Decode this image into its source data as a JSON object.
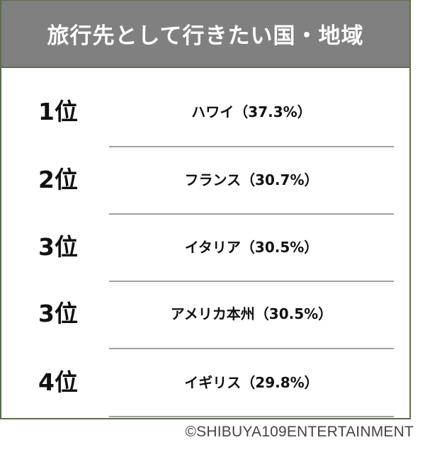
{
  "title": "旅行先として行きたい国・地域",
  "rankings": [
    {
      "rank": "1位",
      "item": "ハワイ（37.3%）"
    },
    {
      "rank": "2位",
      "item": "フランス（30.7%）"
    },
    {
      "rank": "3位",
      "item": "イタリア（30.5%）"
    },
    {
      "rank": "3位",
      "item": "アメリカ本州（30.5%）"
    },
    {
      "rank": "4位",
      "item": "イギリス（29.8%）"
    }
  ],
  "copyright": "©SHIBUYA109ENTERTAINMENT",
  "colors": {
    "header": "#808080",
    "border": "#5e6b4e",
    "separator": "#a0a0a0"
  }
}
